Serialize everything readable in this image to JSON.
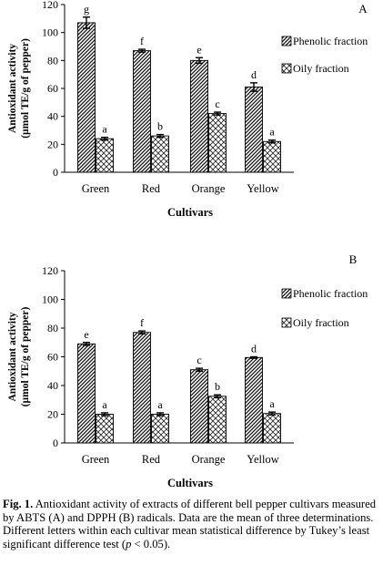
{
  "chart_data": [
    {
      "type": "bar",
      "panel_label": "A",
      "ylabel_line1": "Antioxidant activity",
      "ylabel_line2": "(µmol TE/g of pepper)",
      "xlabel": "Cultivars",
      "categories": [
        "Green",
        "Red",
        "Orange",
        "Yellow"
      ],
      "ylim": [
        0,
        120
      ],
      "yticks": [
        0,
        20,
        40,
        60,
        80,
        100,
        120
      ],
      "grid": false,
      "legend_position": "right",
      "series": [
        {
          "name": "Phenolic fraction",
          "pattern": "diagonal-hatch",
          "values": [
            107,
            87,
            80,
            61
          ],
          "errors": [
            4,
            1,
            2,
            3
          ],
          "letters": [
            "g",
            "f",
            "e",
            "d"
          ]
        },
        {
          "name": "Oily fraction",
          "pattern": "crosshatch",
          "values": [
            24,
            26,
            42,
            22
          ],
          "errors": [
            1,
            1,
            1,
            1
          ],
          "letters": [
            "a",
            "b",
            "c",
            "a"
          ]
        }
      ]
    },
    {
      "type": "bar",
      "panel_label": "B",
      "ylabel_line1": "Antioxidant activity",
      "ylabel_line2": "(µmol TE/g of pepper)",
      "xlabel": "Cultivars",
      "categories": [
        "Green",
        "Red",
        "Orange",
        "Yellow"
      ],
      "ylim": [
        0,
        120
      ],
      "yticks": [
        0,
        20,
        40,
        60,
        80,
        100,
        120
      ],
      "grid": false,
      "legend_position": "right",
      "series": [
        {
          "name": "Phenolic fraction",
          "pattern": "diagonal-hatch",
          "values": [
            69,
            77,
            51,
            59.5
          ],
          "errors": [
            1,
            1,
            1,
            0.5
          ],
          "letters": [
            "e",
            "f",
            "c",
            "d"
          ]
        },
        {
          "name": "Oily fraction",
          "pattern": "crosshatch",
          "values": [
            20,
            20,
            32.5,
            20.5
          ],
          "errors": [
            1,
            1,
            1,
            1
          ],
          "letters": [
            "a",
            "a",
            "b",
            "a"
          ]
        }
      ]
    }
  ],
  "caption": {
    "fig_label": "Fig. 1.",
    "text_before_p": " Antioxidant activity of extracts of different bell pepper cultivars measured by ABTS (A) and DPPH (B) radicals. Data are the mean of three determinations. Different letters within each cultivar mean statistical difference by Tukey’s least significant difference test (",
    "p_symbol": "p",
    "text_after_p": " < 0.05)."
  }
}
